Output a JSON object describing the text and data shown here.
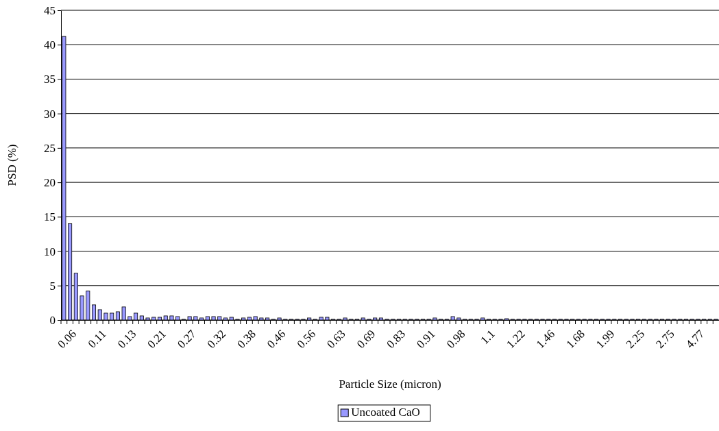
{
  "chart_data": {
    "type": "bar",
    "xlabel": "Particle Size (micron)",
    "ylabel": "PSD (%)",
    "categories": [
      "0.06",
      null,
      null,
      null,
      null,
      "0.11",
      null,
      null,
      null,
      null,
      "0.13",
      null,
      null,
      null,
      null,
      "0.21",
      null,
      null,
      null,
      null,
      "0.27",
      null,
      null,
      null,
      null,
      "0.32",
      null,
      null,
      null,
      null,
      "0.38",
      null,
      null,
      null,
      null,
      "0.46",
      null,
      null,
      null,
      null,
      "0.56",
      null,
      null,
      null,
      null,
      "0.63",
      null,
      null,
      null,
      null,
      "0.69",
      null,
      null,
      null,
      null,
      "0.83",
      null,
      null,
      null,
      null,
      "0.91",
      null,
      null,
      null,
      null,
      "0.98",
      null,
      null,
      null,
      null,
      "1.1",
      null,
      null,
      null,
      null,
      "1.22",
      null,
      null,
      null,
      null,
      "1.46",
      null,
      null,
      null,
      null,
      "1.68",
      null,
      null,
      null,
      null,
      "1.99",
      null,
      null,
      null,
      null,
      "2.25",
      null,
      null,
      null,
      null,
      "2.75",
      null,
      null,
      null,
      null,
      "4.77",
      null,
      null,
      null,
      null
    ],
    "series": [
      {
        "name": "Uncoated CaO",
        "color": "#9999ff",
        "values": [
          41.2,
          14,
          6.8,
          3.5,
          4.2,
          2.2,
          1.5,
          1,
          1,
          1.2,
          1.9,
          0.5,
          1,
          0.6,
          0.3,
          0.4,
          0.4,
          0.6,
          0.6,
          0.5,
          0.1,
          0.5,
          0.5,
          0.3,
          0.5,
          0.5,
          0.5,
          0.3,
          0.4,
          0.1,
          0.3,
          0.4,
          0.5,
          0.3,
          0.3,
          0.1,
          0.3,
          0.1,
          0.1,
          0.1,
          0.1,
          0.3,
          0.1,
          0.4,
          0.4,
          0.1,
          0.1,
          0.3,
          0.1,
          0.1,
          0.3,
          0.1,
          0.3,
          0.3,
          0.1,
          0.1,
          0.1,
          0.1,
          0.1,
          0.1,
          0.1,
          0.1,
          0.3,
          0.1,
          0.1,
          0.5,
          0.3,
          0.1,
          0.1,
          0.1,
          0.3,
          0.1,
          0.1,
          0.1,
          0.2,
          0.1,
          0.1,
          0.1,
          0.1,
          0.1,
          0.1,
          0.1,
          0.1,
          0.1,
          0.1,
          0.1,
          0.1,
          0.1,
          0.1,
          0.1,
          0.1,
          0.1,
          0.1,
          0.1,
          0.1,
          0.1,
          0.1,
          0.1,
          0.1,
          0.1,
          0.1,
          0.1,
          0.1,
          0.1,
          0.1,
          0.1,
          0.1,
          0.1,
          0.1,
          0.1
        ]
      }
    ],
    "ylim": [
      0,
      45
    ],
    "yticks": [
      0,
      5,
      10,
      15,
      20,
      25,
      30,
      35,
      40,
      45
    ],
    "grid": "y",
    "legend": "bottom"
  }
}
